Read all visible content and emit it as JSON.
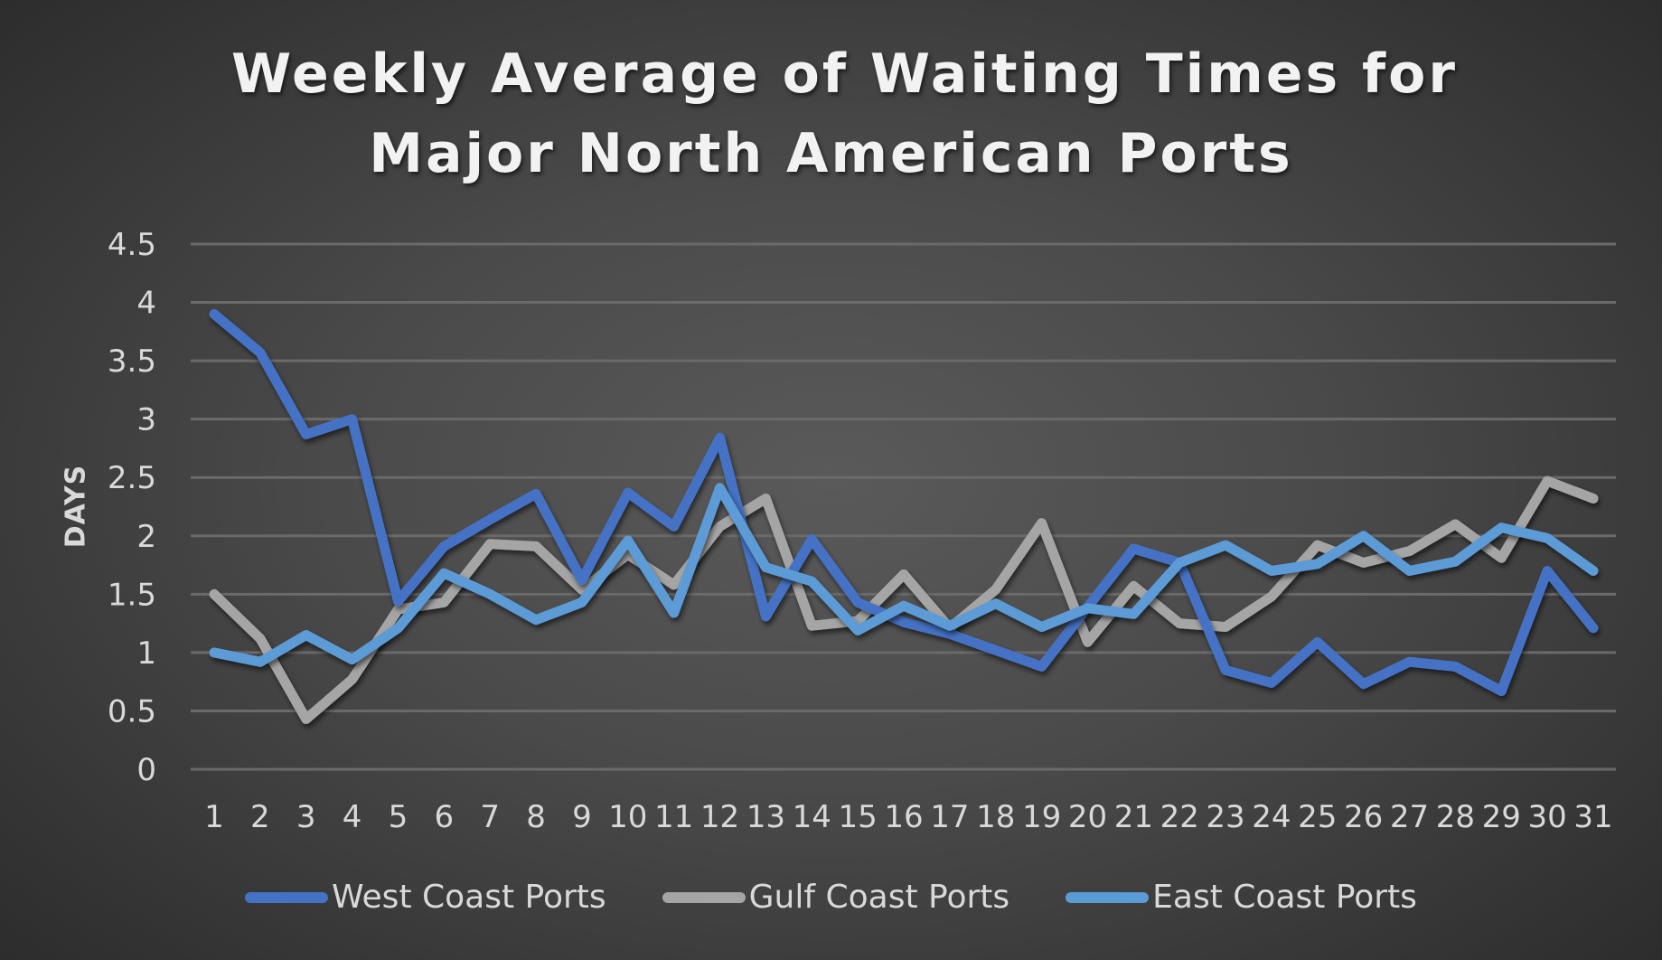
{
  "chart_data": {
    "type": "line",
    "title": "Weekly Average of Waiting Times for Major North American Ports",
    "title_lines": [
      "Weekly Average of Waiting Times for",
      "Major North American Ports"
    ],
    "xlabel": "",
    "ylabel": "DAYS",
    "ylim": [
      0,
      4.5
    ],
    "yticks": [
      "0",
      "0.5",
      "1",
      "1.5",
      "2",
      "2.5",
      "3",
      "3.5",
      "4",
      "4.5"
    ],
    "grid": true,
    "legend_position": "bottom",
    "x": [
      1,
      2,
      3,
      4,
      5,
      6,
      7,
      8,
      9,
      10,
      11,
      12,
      13,
      14,
      15,
      16,
      17,
      18,
      19,
      20,
      21,
      22,
      23,
      24,
      25,
      26,
      27,
      28,
      29,
      30,
      31
    ],
    "series": [
      {
        "name": "West Coast Ports",
        "color": "#4472C4",
        "values": [
          3.9,
          3.57,
          2.87,
          3.0,
          1.44,
          1.91,
          2.14,
          2.36,
          1.62,
          2.37,
          2.08,
          2.84,
          1.31,
          1.97,
          1.43,
          1.26,
          1.16,
          1.02,
          0.88,
          1.39,
          1.89,
          1.77,
          0.85,
          0.74,
          1.09,
          0.73,
          0.92,
          0.88,
          0.67,
          1.7,
          1.21
        ]
      },
      {
        "name": "Gulf Coast Ports",
        "color": "#A5A5A5",
        "values": [
          1.5,
          1.12,
          0.43,
          0.77,
          1.37,
          1.43,
          1.93,
          1.91,
          1.54,
          1.84,
          1.58,
          2.08,
          2.32,
          1.23,
          1.27,
          1.67,
          1.21,
          1.54,
          2.11,
          1.09,
          1.57,
          1.25,
          1.22,
          1.48,
          1.92,
          1.77,
          1.87,
          2.1,
          1.81,
          2.47,
          2.32
        ]
      },
      {
        "name": "East Coast Ports",
        "color": "#5B9BD5",
        "values": [
          1.0,
          0.92,
          1.15,
          0.94,
          1.21,
          1.68,
          1.5,
          1.28,
          1.43,
          1.96,
          1.34,
          2.41,
          1.73,
          1.61,
          1.19,
          1.4,
          1.23,
          1.42,
          1.22,
          1.38,
          1.33,
          1.77,
          1.92,
          1.7,
          1.76,
          2.0,
          1.7,
          1.78,
          2.07,
          1.98,
          1.7
        ]
      }
    ]
  }
}
